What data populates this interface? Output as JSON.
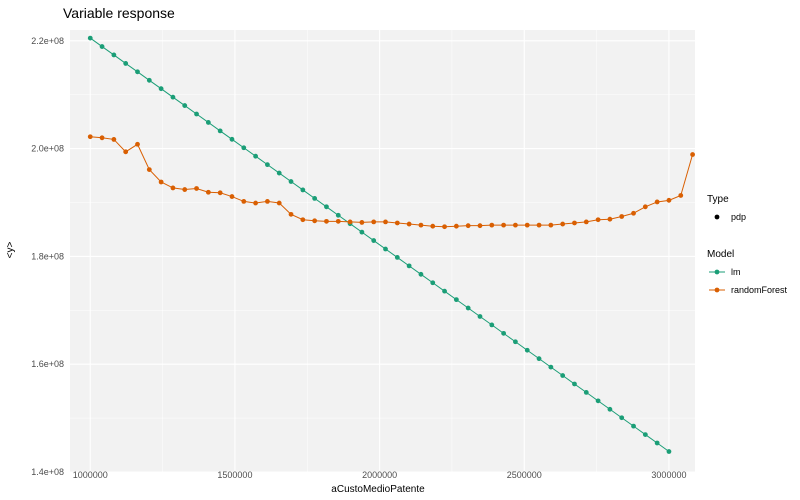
{
  "chart_data": {
    "type": "line",
    "title": "Variable response",
    "xlabel": "aCustoMedioPatente",
    "ylabel": "<y>",
    "xlim": [
      930000,
      3090000
    ],
    "ylim": [
      140000000,
      222000000
    ],
    "x_ticks": [
      1000000,
      1500000,
      2000000,
      2500000,
      3000000
    ],
    "x_tick_labels": [
      "1000000",
      "1500000",
      "2000000",
      "2500000",
      "3000000"
    ],
    "y_ticks": [
      140000000,
      160000000,
      180000000,
      200000000,
      220000000
    ],
    "y_tick_labels": [
      "1.4e+08",
      "1.6e+08",
      "1.8e+08",
      "2.0e+08",
      "2.2e+08"
    ],
    "grid": true,
    "legend": {
      "placement": "right",
      "type_title": "Type",
      "type_items": [
        "pdp"
      ],
      "model_title": "Model",
      "model_items": [
        "lm",
        "randomForest"
      ]
    },
    "series": [
      {
        "name": "lm",
        "color": "#1b9e77",
        "x_start": 1000000,
        "x_step": 40816.33,
        "values": [
          220500000,
          218930000,
          217370000,
          215800000,
          214240000,
          212670000,
          211110000,
          209540000,
          207980000,
          206410000,
          204850000,
          203280000,
          201720000,
          200150000,
          198590000,
          197020000,
          195460000,
          193890000,
          192330000,
          190760000,
          189200000,
          187630000,
          186070000,
          184500000,
          182940000,
          181370000,
          179810000,
          178240000,
          176680000,
          175110000,
          173550000,
          171980000,
          170420000,
          168850000,
          167290000,
          165720000,
          164160000,
          162590000,
          161030000,
          159460000,
          157900000,
          156330000,
          154770000,
          153200000,
          151640000,
          150070000,
          148510000,
          146940000,
          145380000,
          143800000
        ]
      },
      {
        "name": "randomForest",
        "color": "#d95f02",
        "x_start": 1000000,
        "x_step": 40816.33,
        "values": [
          202200000,
          202000000,
          201700000,
          199400000,
          200800000,
          196100000,
          193800000,
          192700000,
          192400000,
          192600000,
          191900000,
          191800000,
          191100000,
          190200000,
          189900000,
          190200000,
          189900000,
          187800000,
          186800000,
          186600000,
          186500000,
          186500000,
          186400000,
          186300000,
          186400000,
          186400000,
          186200000,
          186000000,
          185800000,
          185600000,
          185500000,
          185600000,
          185700000,
          185700000,
          185800000,
          185800000,
          185800000,
          185800000,
          185800000,
          185800000,
          186000000,
          186200000,
          186400000,
          186800000,
          186900000,
          187400000,
          188000000,
          189200000,
          190100000,
          190400000,
          191300000,
          198900000
        ]
      }
    ]
  }
}
